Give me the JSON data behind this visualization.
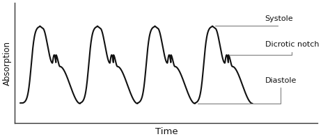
{
  "xlabel": "Time",
  "ylabel": "Absorption",
  "background_color": "#ffffff",
  "line_color": "#111111",
  "line_width": 1.5,
  "annotation_color": "#888888",
  "annotation_fontsize": 8.0,
  "xlabel_fontsize": 9.5,
  "ylabel_fontsize": 8.5,
  "systole_label": "Systole",
  "dicrotic_label": "Dicrotic notch",
  "diastole_label": "Diastole",
  "n_cycles": 4
}
